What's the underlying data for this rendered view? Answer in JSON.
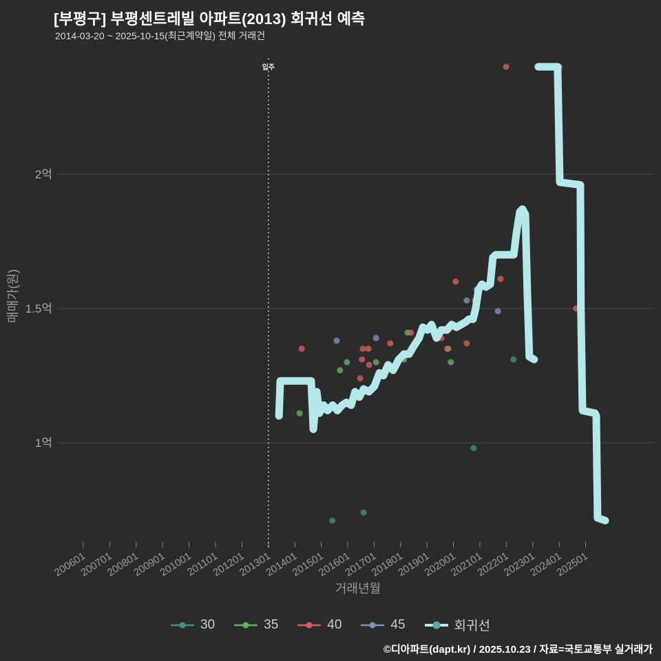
{
  "header": {
    "title": "[부평구] 부평센트레빌 아파트(2013) 회귀선 예측",
    "subtitle": "2014-03-20 ~ 2025-10-15(최근계약일) 전체 거래건"
  },
  "footer": {
    "credit": "©디아파트(dapt.kr) / 2025.10.23 / 자료=국토교통부 실거래가"
  },
  "colors": {
    "background": "#2b2b2b",
    "grid": "#4a4a4a",
    "tick": "#8a8a8a",
    "axis_text": "#9a9a9a",
    "title_text": "#ffffff",
    "annotation_line": "#e8e8e8",
    "series_30": "#3f9188",
    "series_35": "#5fb65a",
    "series_40": "#d95f5f",
    "series_45": "#8191c2",
    "regression": "#b5e8ea",
    "regression_dot": "#5ba8ad"
  },
  "chart_data": {
    "type": "scatter",
    "title": "[부평구] 부평센트레빌 아파트(2013) 회귀선 예측",
    "subtitle": "2014-03-20 ~ 2025-10-15(최근계약일) 전체 거래건",
    "xlabel": "거래년월",
    "ylabel": "매매가(원)",
    "legend_position": "bottom",
    "grid": "horizontal-only",
    "x_axis": {
      "tick_labels": [
        "200601",
        "200701",
        "200801",
        "200901",
        "201001",
        "201101",
        "201201",
        "201301",
        "201401",
        "201501",
        "201601",
        "201701",
        "201801",
        "201901",
        "202001",
        "202101",
        "202201",
        "202301",
        "202401",
        "202501"
      ],
      "tick_years": [
        2006,
        2007,
        2008,
        2009,
        2010,
        2011,
        2012,
        2013,
        2014,
        2015,
        2016,
        2017,
        2018,
        2019,
        2020,
        2021,
        2022,
        2023,
        2024,
        2025
      ],
      "range_years": [
        2004.8,
        2027.6
      ]
    },
    "y_axis": {
      "unit": "억원",
      "ticks": [
        {
          "label": "1억",
          "value": 1.0
        },
        {
          "label": "1.5억",
          "value": 1.5
        },
        {
          "label": "2억",
          "value": 2.0
        }
      ],
      "range": [
        0.55,
        2.43
      ]
    },
    "annotation": {
      "label": "입주",
      "x_year": 2013.0,
      "x_label": "201301",
      "style": "dotted-vertical"
    },
    "series": [
      {
        "name": "30",
        "type": "scatter",
        "color": "#3f9188",
        "points": [
          [
            2015.42,
            0.71
          ],
          [
            2016.6,
            0.74
          ],
          [
            2020.76,
            0.98
          ],
          [
            2022.27,
            1.31
          ]
        ]
      },
      {
        "name": "35",
        "type": "scatter",
        "color": "#5fb65a",
        "points": [
          [
            2014.18,
            1.11
          ],
          [
            2015.71,
            1.27
          ],
          [
            2015.97,
            1.3
          ],
          [
            2017.07,
            1.3
          ],
          [
            2018.13,
            1.31
          ],
          [
            2018.26,
            1.41
          ],
          [
            2019.8,
            1.35
          ],
          [
            2019.9,
            1.3
          ],
          [
            2020.81,
            1.48
          ]
        ]
      },
      {
        "name": "40",
        "type": "scatter",
        "color": "#d95f5f",
        "points": [
          [
            2014.26,
            1.35
          ],
          [
            2016.47,
            1.24
          ],
          [
            2016.54,
            1.31
          ],
          [
            2016.57,
            1.35
          ],
          [
            2016.78,
            1.35
          ],
          [
            2016.81,
            1.29
          ],
          [
            2017.61,
            1.37
          ],
          [
            2018.08,
            1.33
          ],
          [
            2018.39,
            1.41
          ],
          [
            2019.54,
            1.39
          ],
          [
            2019.77,
            1.35
          ],
          [
            2020.08,
            1.6
          ],
          [
            2020.5,
            1.37
          ],
          [
            2020.81,
            1.53
          ],
          [
            2020.87,
            1.54
          ],
          [
            2021.78,
            1.61
          ],
          [
            2021.99,
            2.4
          ],
          [
            2024.0,
            2.4
          ],
          [
            2024.64,
            1.5
          ]
        ]
      },
      {
        "name": "45",
        "type": "scatter",
        "color": "#8191c2",
        "points": [
          [
            2015.58,
            1.38
          ],
          [
            2017.07,
            1.39
          ],
          [
            2018.86,
            1.43
          ],
          [
            2020.5,
            1.53
          ],
          [
            2020.87,
            1.57
          ],
          [
            2021.68,
            1.49
          ]
        ]
      },
      {
        "name": "회귀선",
        "type": "line",
        "color": "#b5e8ea",
        "dot_color": "#5ba8ad",
        "width": 11,
        "segments": [
          [
            [
              2013.4,
              1.1
            ],
            [
              2013.45,
              1.23
            ],
            [
              2014.62,
              1.23
            ],
            [
              2014.7,
              1.05
            ],
            [
              2014.83,
              1.19
            ],
            [
              2014.93,
              1.11
            ],
            [
              2015.09,
              1.14
            ],
            [
              2015.24,
              1.12
            ],
            [
              2015.43,
              1.14
            ],
            [
              2015.61,
              1.12
            ],
            [
              2015.79,
              1.14
            ],
            [
              2015.95,
              1.15
            ],
            [
              2016.13,
              1.14
            ],
            [
              2016.28,
              1.19
            ],
            [
              2016.44,
              1.17
            ],
            [
              2016.6,
              1.2
            ],
            [
              2016.8,
              1.19
            ],
            [
              2017.01,
              1.21
            ],
            [
              2017.2,
              1.26
            ],
            [
              2017.35,
              1.25
            ],
            [
              2017.53,
              1.29
            ],
            [
              2017.72,
              1.27
            ],
            [
              2017.93,
              1.31
            ],
            [
              2018.13,
              1.33
            ],
            [
              2018.32,
              1.33
            ],
            [
              2018.5,
              1.36
            ],
            [
              2018.7,
              1.39
            ],
            [
              2018.84,
              1.43
            ],
            [
              2019.02,
              1.42
            ],
            [
              2019.17,
              1.44
            ],
            [
              2019.36,
              1.39
            ],
            [
              2019.54,
              1.42
            ],
            [
              2019.75,
              1.42
            ],
            [
              2019.93,
              1.44
            ],
            [
              2020.11,
              1.43
            ],
            [
              2020.29,
              1.44
            ],
            [
              2020.47,
              1.45
            ],
            [
              2020.58,
              1.46
            ],
            [
              2020.74,
              1.46
            ],
            [
              2020.84,
              1.5
            ],
            [
              2020.95,
              1.57
            ],
            [
              2021.08,
              1.59
            ],
            [
              2021.23,
              1.58
            ],
            [
              2021.39,
              1.59
            ],
            [
              2021.49,
              1.69
            ],
            [
              2021.6,
              1.7
            ],
            [
              2022.28,
              1.7
            ],
            [
              2022.38,
              1.78
            ],
            [
              2022.51,
              1.86
            ],
            [
              2022.61,
              1.87
            ],
            [
              2022.72,
              1.85
            ],
            [
              2022.79,
              1.57
            ],
            [
              2022.87,
              1.32
            ],
            [
              2023.05,
              1.31
            ]
          ],
          [
            [
              2023.21,
              2.4
            ],
            [
              2023.94,
              2.4
            ],
            [
              2024.02,
              1.97
            ],
            [
              2024.8,
              1.96
            ],
            [
              2024.82,
              1.5
            ],
            [
              2024.88,
              1.12
            ],
            [
              2025.35,
              1.11
            ],
            [
              2025.4,
              1.1
            ],
            [
              2025.45,
              0.72
            ],
            [
              2025.74,
              0.71
            ]
          ]
        ]
      }
    ]
  }
}
